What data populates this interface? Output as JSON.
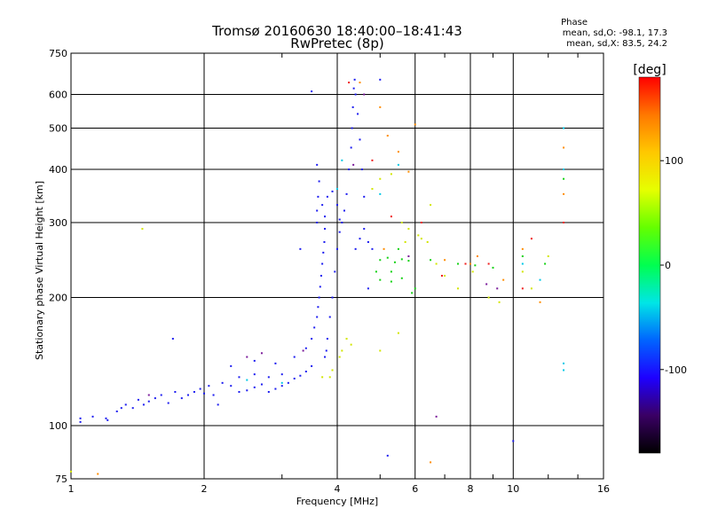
{
  "header": {
    "title_line1": "Tromsø 20160630 18:40:00–18:41:43",
    "title_line2": "RwPretec (8p)",
    "phase_heading": "Phase",
    "phase_o": "mean, sd,O: -98.1, 17.3",
    "phase_x": "mean, sd,X:  83.5, 24.2"
  },
  "chart_data": {
    "type": "scatter",
    "xlabel": "Frequency [MHz]",
    "ylabel": "Stationary phase Virtual Height [km]",
    "x_scale": "log",
    "y_scale": "log",
    "xlim": [
      1,
      16
    ],
    "ylim": [
      75,
      750
    ],
    "x_ticks": [
      1,
      2,
      4,
      6,
      8,
      10,
      16
    ],
    "x_tick_labels": [
      "1",
      "2",
      "4",
      "6",
      "8",
      "10",
      "16"
    ],
    "y_ticks": [
      75,
      100,
      200,
      300,
      400,
      500,
      600,
      750
    ],
    "y_tick_labels": [
      "75",
      "100",
      "200",
      "300",
      "400",
      "500",
      "600",
      "750"
    ],
    "grid": true,
    "colorbar": {
      "label": "[deg]",
      "range": [
        -180,
        180
      ],
      "ticks": [
        100,
        0,
        -100
      ],
      "tick_labels": [
        "100",
        "0",
        "-100"
      ],
      "colors": [
        "#000000",
        "#3a0064",
        "#1e00ff",
        "#0064ff",
        "#00e6e6",
        "#00ff50",
        "#64ff00",
        "#e6ff00",
        "#ffc800",
        "#ff7800",
        "#ff0000"
      ]
    },
    "series": [
      {
        "phase_group": "blue (~-100 deg)",
        "color": "#1c1cf0",
        "points": [
          [
            1.05,
            102
          ],
          [
            1.05,
            104
          ],
          [
            1.12,
            105
          ],
          [
            1.2,
            104
          ],
          [
            1.21,
            103
          ],
          [
            1.27,
            108
          ],
          [
            1.3,
            110
          ],
          [
            1.33,
            112
          ],
          [
            1.38,
            110
          ],
          [
            1.42,
            115
          ],
          [
            1.46,
            112
          ],
          [
            1.5,
            114
          ],
          [
            1.55,
            116
          ],
          [
            1.6,
            118
          ],
          [
            1.66,
            113
          ],
          [
            1.72,
            120
          ],
          [
            1.78,
            116
          ],
          [
            1.84,
            118
          ],
          [
            1.9,
            120
          ],
          [
            1.96,
            122
          ],
          [
            2.0,
            119
          ],
          [
            2.05,
            124
          ],
          [
            2.1,
            118
          ],
          [
            2.15,
            112
          ],
          [
            2.2,
            126
          ],
          [
            2.3,
            124
          ],
          [
            2.4,
            120
          ],
          [
            2.5,
            121
          ],
          [
            2.6,
            123
          ],
          [
            2.7,
            125
          ],
          [
            2.8,
            120
          ],
          [
            2.9,
            122
          ],
          [
            3.0,
            124
          ],
          [
            3.1,
            126
          ],
          [
            3.2,
            129
          ],
          [
            3.3,
            131
          ],
          [
            3.4,
            134
          ],
          [
            3.5,
            138
          ],
          [
            2.4,
            130
          ],
          [
            2.6,
            132
          ],
          [
            2.8,
            130
          ],
          [
            3.0,
            132
          ],
          [
            2.3,
            138
          ],
          [
            2.6,
            142
          ],
          [
            2.9,
            140
          ],
          [
            3.2,
            145
          ],
          [
            3.4,
            152
          ],
          [
            3.5,
            160
          ],
          [
            3.55,
            170
          ],
          [
            3.6,
            180
          ],
          [
            3.62,
            190
          ],
          [
            3.64,
            200
          ],
          [
            3.66,
            212
          ],
          [
            3.68,
            225
          ],
          [
            3.7,
            240
          ],
          [
            3.72,
            255
          ],
          [
            3.74,
            270
          ],
          [
            3.75,
            290
          ],
          [
            3.6,
            300
          ],
          [
            3.6,
            320
          ],
          [
            3.62,
            345
          ],
          [
            3.64,
            375
          ],
          [
            3.6,
            410
          ],
          [
            3.7,
            330
          ],
          [
            3.75,
            310
          ],
          [
            3.8,
            345
          ],
          [
            3.9,
            355
          ],
          [
            4.0,
            330
          ],
          [
            4.05,
            305
          ],
          [
            4.1,
            300
          ],
          [
            4.15,
            320
          ],
          [
            4.2,
            350
          ],
          [
            4.25,
            400
          ],
          [
            4.3,
            450
          ],
          [
            4.32,
            500
          ],
          [
            4.34,
            560
          ],
          [
            4.36,
            620
          ],
          [
            4.38,
            650
          ],
          [
            4.4,
            600
          ],
          [
            4.45,
            540
          ],
          [
            4.5,
            470
          ],
          [
            4.55,
            400
          ],
          [
            4.6,
            345
          ],
          [
            4.4,
            260
          ],
          [
            4.5,
            275
          ],
          [
            4.6,
            290
          ],
          [
            4.7,
            270
          ],
          [
            4.8,
            260
          ],
          [
            3.9,
            200
          ],
          [
            3.95,
            230
          ],
          [
            4.0,
            260
          ],
          [
            4.05,
            285
          ],
          [
            3.85,
            180
          ],
          [
            3.8,
            160
          ],
          [
            3.78,
            150
          ],
          [
            3.75,
            145
          ],
          [
            3.5,
            610
          ],
          [
            3.3,
            260
          ],
          [
            5.2,
            85
          ],
          [
            10.0,
            92
          ],
          [
            1.7,
            160
          ],
          [
            5.0,
            650
          ],
          [
            4.7,
            210
          ]
        ]
      },
      {
        "phase_group": "purple (~-140 deg)",
        "color": "#7a1a9a",
        "points": [
          [
            2.5,
            145
          ],
          [
            2.7,
            148
          ],
          [
            3.35,
            150
          ],
          [
            4.35,
            410
          ],
          [
            4.6,
            600
          ],
          [
            5.8,
            250
          ],
          [
            6.7,
            105
          ],
          [
            9.2,
            210
          ],
          [
            8.7,
            215
          ],
          [
            1.5,
            118
          ]
        ]
      },
      {
        "phase_group": "cyan (~-40 deg)",
        "color": "#00c8e6",
        "points": [
          [
            2.5,
            128
          ],
          [
            3.0,
            126
          ],
          [
            4.0,
            360
          ],
          [
            4.1,
            420
          ],
          [
            5.0,
            350
          ],
          [
            5.5,
            410
          ],
          [
            13.0,
            500
          ],
          [
            13.0,
            400
          ],
          [
            13.0,
            140
          ],
          [
            13.0,
            135
          ],
          [
            11.5,
            220
          ],
          [
            10.5,
            240
          ]
        ]
      },
      {
        "phase_group": "green (~20 deg)",
        "color": "#14d214",
        "points": [
          [
            5.0,
            245
          ],
          [
            5.2,
            248
          ],
          [
            5.4,
            242
          ],
          [
            5.6,
            246
          ],
          [
            5.8,
            244
          ],
          [
            5.0,
            220
          ],
          [
            5.3,
            218
          ],
          [
            5.6,
            222
          ],
          [
            5.9,
            205
          ],
          [
            6.0,
            210
          ],
          [
            6.5,
            245
          ],
          [
            7.5,
            240
          ],
          [
            8.2,
            238
          ],
          [
            9.0,
            235
          ],
          [
            5.3,
            230
          ],
          [
            4.9,
            230
          ],
          [
            5.5,
            260
          ],
          [
            10.5,
            250
          ],
          [
            11.8,
            240
          ],
          [
            13.0,
            380
          ]
        ]
      },
      {
        "phase_group": "yellow (~100 deg)",
        "color": "#d2e600",
        "points": [
          [
            3.7,
            130
          ],
          [
            3.85,
            130
          ],
          [
            3.9,
            135
          ],
          [
            4.05,
            145
          ],
          [
            4.1,
            150
          ],
          [
            4.2,
            160
          ],
          [
            4.3,
            155
          ],
          [
            4.8,
            360
          ],
          [
            5.0,
            380
          ],
          [
            5.3,
            390
          ],
          [
            5.6,
            300
          ],
          [
            5.8,
            290
          ],
          [
            6.1,
            280
          ],
          [
            6.4,
            270
          ],
          [
            6.7,
            240
          ],
          [
            7.0,
            225
          ],
          [
            7.5,
            210
          ],
          [
            8.1,
            230
          ],
          [
            8.8,
            200
          ],
          [
            9.3,
            195
          ],
          [
            10.5,
            230
          ],
          [
            11.0,
            210
          ],
          [
            12.0,
            250
          ],
          [
            5.0,
            150
          ],
          [
            5.5,
            165
          ],
          [
            6.2,
            275
          ],
          [
            1.0,
            78
          ],
          [
            1.45,
            290
          ],
          [
            6.5,
            330
          ],
          [
            5.7,
            270
          ]
        ]
      },
      {
        "phase_group": "orange (~150 deg)",
        "color": "#ff8c00",
        "points": [
          [
            1.15,
            77
          ],
          [
            4.5,
            640
          ],
          [
            5.0,
            560
          ],
          [
            5.2,
            480
          ],
          [
            5.5,
            440
          ],
          [
            6.0,
            510
          ],
          [
            6.5,
            82
          ],
          [
            7.0,
            245
          ],
          [
            8.0,
            240
          ],
          [
            8.3,
            250
          ],
          [
            9.5,
            220
          ],
          [
            10.5,
            260
          ],
          [
            11.5,
            195
          ],
          [
            13.0,
            350
          ],
          [
            13.0,
            450
          ],
          [
            5.1,
            260
          ],
          [
            5.8,
            395
          ]
        ]
      },
      {
        "phase_group": "red (~180 deg)",
        "color": "#f01e1e",
        "points": [
          [
            4.25,
            640
          ],
          [
            4.8,
            420
          ],
          [
            5.3,
            310
          ],
          [
            6.2,
            300
          ],
          [
            6.9,
            225
          ],
          [
            7.8,
            240
          ],
          [
            8.8,
            240
          ],
          [
            10.5,
            210
          ],
          [
            11.0,
            275
          ],
          [
            13.0,
            300
          ]
        ]
      }
    ]
  }
}
